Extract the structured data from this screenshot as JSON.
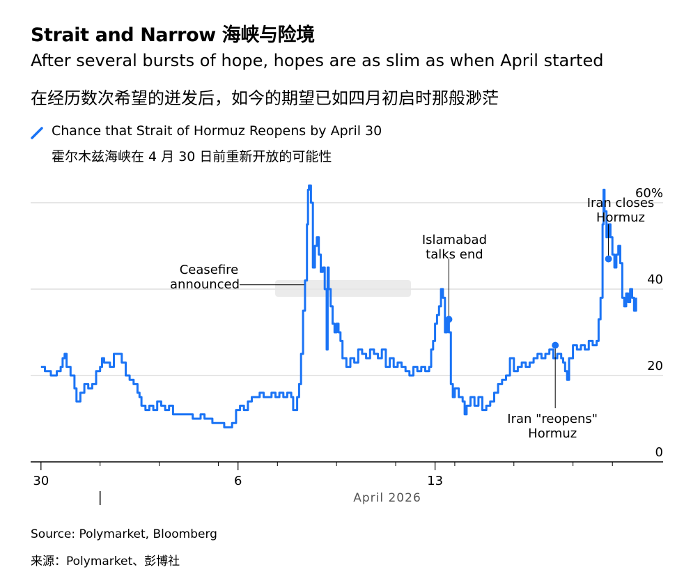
{
  "title": "Strait and Narrow  海峡与险境",
  "subtitle_en": "After several bursts of hope, hopes are as slim as when April started",
  "subtitle_zh": "在经历数次希望的迸发后，如今的期望已如四月初启时那般渺茫",
  "legend": {
    "label_en": "Chance that Strait of Hormuz Reopens by April 30",
    "label_zh": "霍尔木兹海峡在 4 月 30 日前重新开放的可能性",
    "icon": "diagonal-line-icon"
  },
  "source_en": "Source: Polymarket, Bloomberg",
  "source_zh": "来源：Polymarket、彭博社",
  "colors": {
    "line": "#1a73f5",
    "grid": "#cccccc",
    "axis": "#000000",
    "tick_text": "#000000",
    "month_text": "#555555",
    "watermark": "#e6e6e6"
  },
  "chart_data": {
    "type": "line",
    "x_unit": "days since March 30, 2026",
    "ylim": [
      0,
      60
    ],
    "xlim": [
      -0.1,
      30.3
    ],
    "y_ticks": [
      {
        "value": 0,
        "label": "0"
      },
      {
        "value": 20,
        "label": "20"
      },
      {
        "value": 40,
        "label": "40"
      },
      {
        "value": 60,
        "label": "60%"
      }
    ],
    "x_ticks": [
      {
        "value": 0,
        "label": "30"
      },
      {
        "value": 10,
        "label": "6"
      },
      {
        "value": 20,
        "label": "13"
      }
    ],
    "x_minor_ticks": [
      3,
      6,
      9,
      12,
      15,
      18,
      21,
      24,
      27,
      29
    ],
    "month_label": "April 2026",
    "month_divider": 3,
    "grid": true,
    "series": [
      {
        "values": [
          [
            0.0,
            22
          ],
          [
            0.2,
            21
          ],
          [
            0.5,
            20
          ],
          [
            0.8,
            21
          ],
          [
            1.0,
            22
          ],
          [
            1.1,
            24
          ],
          [
            1.2,
            25
          ],
          [
            1.3,
            22
          ],
          [
            1.5,
            20
          ],
          [
            1.7,
            17
          ],
          [
            1.8,
            14
          ],
          [
            2.0,
            16
          ],
          [
            2.2,
            18
          ],
          [
            2.4,
            17
          ],
          [
            2.6,
            18
          ],
          [
            2.8,
            21
          ],
          [
            3.0,
            22
          ],
          [
            3.1,
            24
          ],
          [
            3.2,
            23
          ],
          [
            3.5,
            22
          ],
          [
            3.7,
            25
          ],
          [
            3.9,
            25
          ],
          [
            4.1,
            23
          ],
          [
            4.3,
            20
          ],
          [
            4.5,
            19
          ],
          [
            4.7,
            18
          ],
          [
            4.9,
            16
          ],
          [
            5.0,
            15
          ],
          [
            5.1,
            13
          ],
          [
            5.3,
            12
          ],
          [
            5.5,
            13
          ],
          [
            5.7,
            12
          ],
          [
            5.9,
            14
          ],
          [
            6.1,
            13
          ],
          [
            6.3,
            12
          ],
          [
            6.5,
            13
          ],
          [
            6.7,
            11
          ],
          [
            6.9,
            11
          ],
          [
            7.1,
            11
          ],
          [
            7.3,
            11
          ],
          [
            7.5,
            11
          ],
          [
            7.7,
            10
          ],
          [
            7.9,
            10
          ],
          [
            8.1,
            11
          ],
          [
            8.3,
            10
          ],
          [
            8.5,
            10
          ],
          [
            8.7,
            9
          ],
          [
            8.9,
            9
          ],
          [
            9.1,
            9
          ],
          [
            9.3,
            8
          ],
          [
            9.5,
            8
          ],
          [
            9.7,
            9
          ],
          [
            9.9,
            12
          ],
          [
            10.1,
            13
          ],
          [
            10.3,
            12
          ],
          [
            10.5,
            14
          ],
          [
            10.7,
            15
          ],
          [
            10.9,
            15
          ],
          [
            11.1,
            16
          ],
          [
            11.3,
            15
          ],
          [
            11.5,
            15
          ],
          [
            11.7,
            16
          ],
          [
            11.9,
            15
          ],
          [
            12.1,
            16
          ],
          [
            12.3,
            15
          ],
          [
            12.5,
            16
          ],
          [
            12.6,
            16
          ],
          [
            12.7,
            15
          ],
          [
            12.8,
            12
          ],
          [
            12.9,
            12
          ],
          [
            13.0,
            15
          ],
          [
            13.1,
            18
          ],
          [
            13.2,
            25
          ],
          [
            13.3,
            35
          ],
          [
            13.4,
            42
          ],
          [
            13.5,
            55
          ],
          [
            13.55,
            63
          ],
          [
            13.6,
            64
          ],
          [
            13.7,
            60
          ],
          [
            13.8,
            45
          ],
          [
            13.9,
            50
          ],
          [
            14.0,
            52
          ],
          [
            14.1,
            48
          ],
          [
            14.2,
            44
          ],
          [
            14.3,
            45
          ],
          [
            14.4,
            40
          ],
          [
            14.5,
            26
          ],
          [
            14.55,
            45
          ],
          [
            14.6,
            40
          ],
          [
            14.7,
            36
          ],
          [
            14.8,
            32
          ],
          [
            14.9,
            30
          ],
          [
            15.0,
            32
          ],
          [
            15.1,
            30
          ],
          [
            15.2,
            28
          ],
          [
            15.3,
            24
          ],
          [
            15.5,
            22
          ],
          [
            15.7,
            24
          ],
          [
            15.9,
            23
          ],
          [
            16.1,
            26
          ],
          [
            16.3,
            25
          ],
          [
            16.5,
            24
          ],
          [
            16.7,
            26
          ],
          [
            16.9,
            25
          ],
          [
            17.1,
            24
          ],
          [
            17.3,
            26
          ],
          [
            17.5,
            22
          ],
          [
            17.7,
            24
          ],
          [
            17.9,
            22
          ],
          [
            18.1,
            23
          ],
          [
            18.3,
            22
          ],
          [
            18.5,
            21
          ],
          [
            18.7,
            20
          ],
          [
            18.9,
            22
          ],
          [
            19.1,
            21
          ],
          [
            19.3,
            22
          ],
          [
            19.5,
            21
          ],
          [
            19.7,
            22
          ],
          [
            19.8,
            26
          ],
          [
            19.9,
            28
          ],
          [
            20.0,
            32
          ],
          [
            20.1,
            34
          ],
          [
            20.2,
            36
          ],
          [
            20.3,
            40
          ],
          [
            20.4,
            38
          ],
          [
            20.5,
            30
          ],
          [
            20.6,
            33
          ],
          [
            20.7,
            30
          ],
          [
            20.8,
            18
          ],
          [
            20.9,
            15
          ],
          [
            21.0,
            17
          ],
          [
            21.2,
            15
          ],
          [
            21.4,
            14
          ],
          [
            21.5,
            11
          ],
          [
            21.6,
            13
          ],
          [
            21.8,
            15
          ],
          [
            22.0,
            13
          ],
          [
            22.2,
            15
          ],
          [
            22.4,
            12
          ],
          [
            22.6,
            13
          ],
          [
            22.8,
            14
          ],
          [
            23.0,
            16
          ],
          [
            23.2,
            18
          ],
          [
            23.4,
            19
          ],
          [
            23.6,
            20
          ],
          [
            23.8,
            24
          ],
          [
            24.0,
            21
          ],
          [
            24.2,
            22
          ],
          [
            24.4,
            23
          ],
          [
            24.6,
            22
          ],
          [
            24.8,
            23
          ],
          [
            25.0,
            24
          ],
          [
            25.2,
            25
          ],
          [
            25.4,
            24
          ],
          [
            25.6,
            25
          ],
          [
            25.8,
            26
          ],
          [
            26.0,
            24
          ],
          [
            26.2,
            25
          ],
          [
            26.4,
            24
          ],
          [
            26.5,
            23
          ],
          [
            26.6,
            21
          ],
          [
            26.7,
            19
          ],
          [
            26.8,
            24
          ],
          [
            27.0,
            27
          ],
          [
            27.2,
            26
          ],
          [
            27.4,
            27
          ],
          [
            27.6,
            26
          ],
          [
            27.8,
            28
          ],
          [
            28.0,
            27
          ],
          [
            28.2,
            28
          ],
          [
            28.3,
            33
          ],
          [
            28.4,
            38
          ],
          [
            28.5,
            55
          ],
          [
            28.55,
            63
          ],
          [
            28.6,
            58
          ],
          [
            28.7,
            52
          ],
          [
            28.8,
            55
          ],
          [
            28.9,
            52
          ],
          [
            29.0,
            48
          ],
          [
            29.1,
            45
          ],
          [
            29.2,
            48
          ],
          [
            29.3,
            50
          ],
          [
            29.4,
            46
          ],
          [
            29.5,
            38
          ],
          [
            29.6,
            36
          ],
          [
            29.7,
            39
          ],
          [
            29.8,
            37
          ],
          [
            29.9,
            40
          ],
          [
            30.0,
            38
          ],
          [
            30.1,
            35
          ],
          [
            30.2,
            38
          ]
        ]
      }
    ],
    "annotations": [
      {
        "text": "Ceasefire announced",
        "x": 13.5,
        "y": 41
      },
      {
        "text": "Islamabad talks end",
        "x": 20.7,
        "y": 33
      },
      {
        "text": "Iran \"reopens\" Hormuz",
        "x": 26.1,
        "y": 27
      },
      {
        "text": "Iran closes Hormuz",
        "x": 28.8,
        "y": 47
      }
    ]
  }
}
